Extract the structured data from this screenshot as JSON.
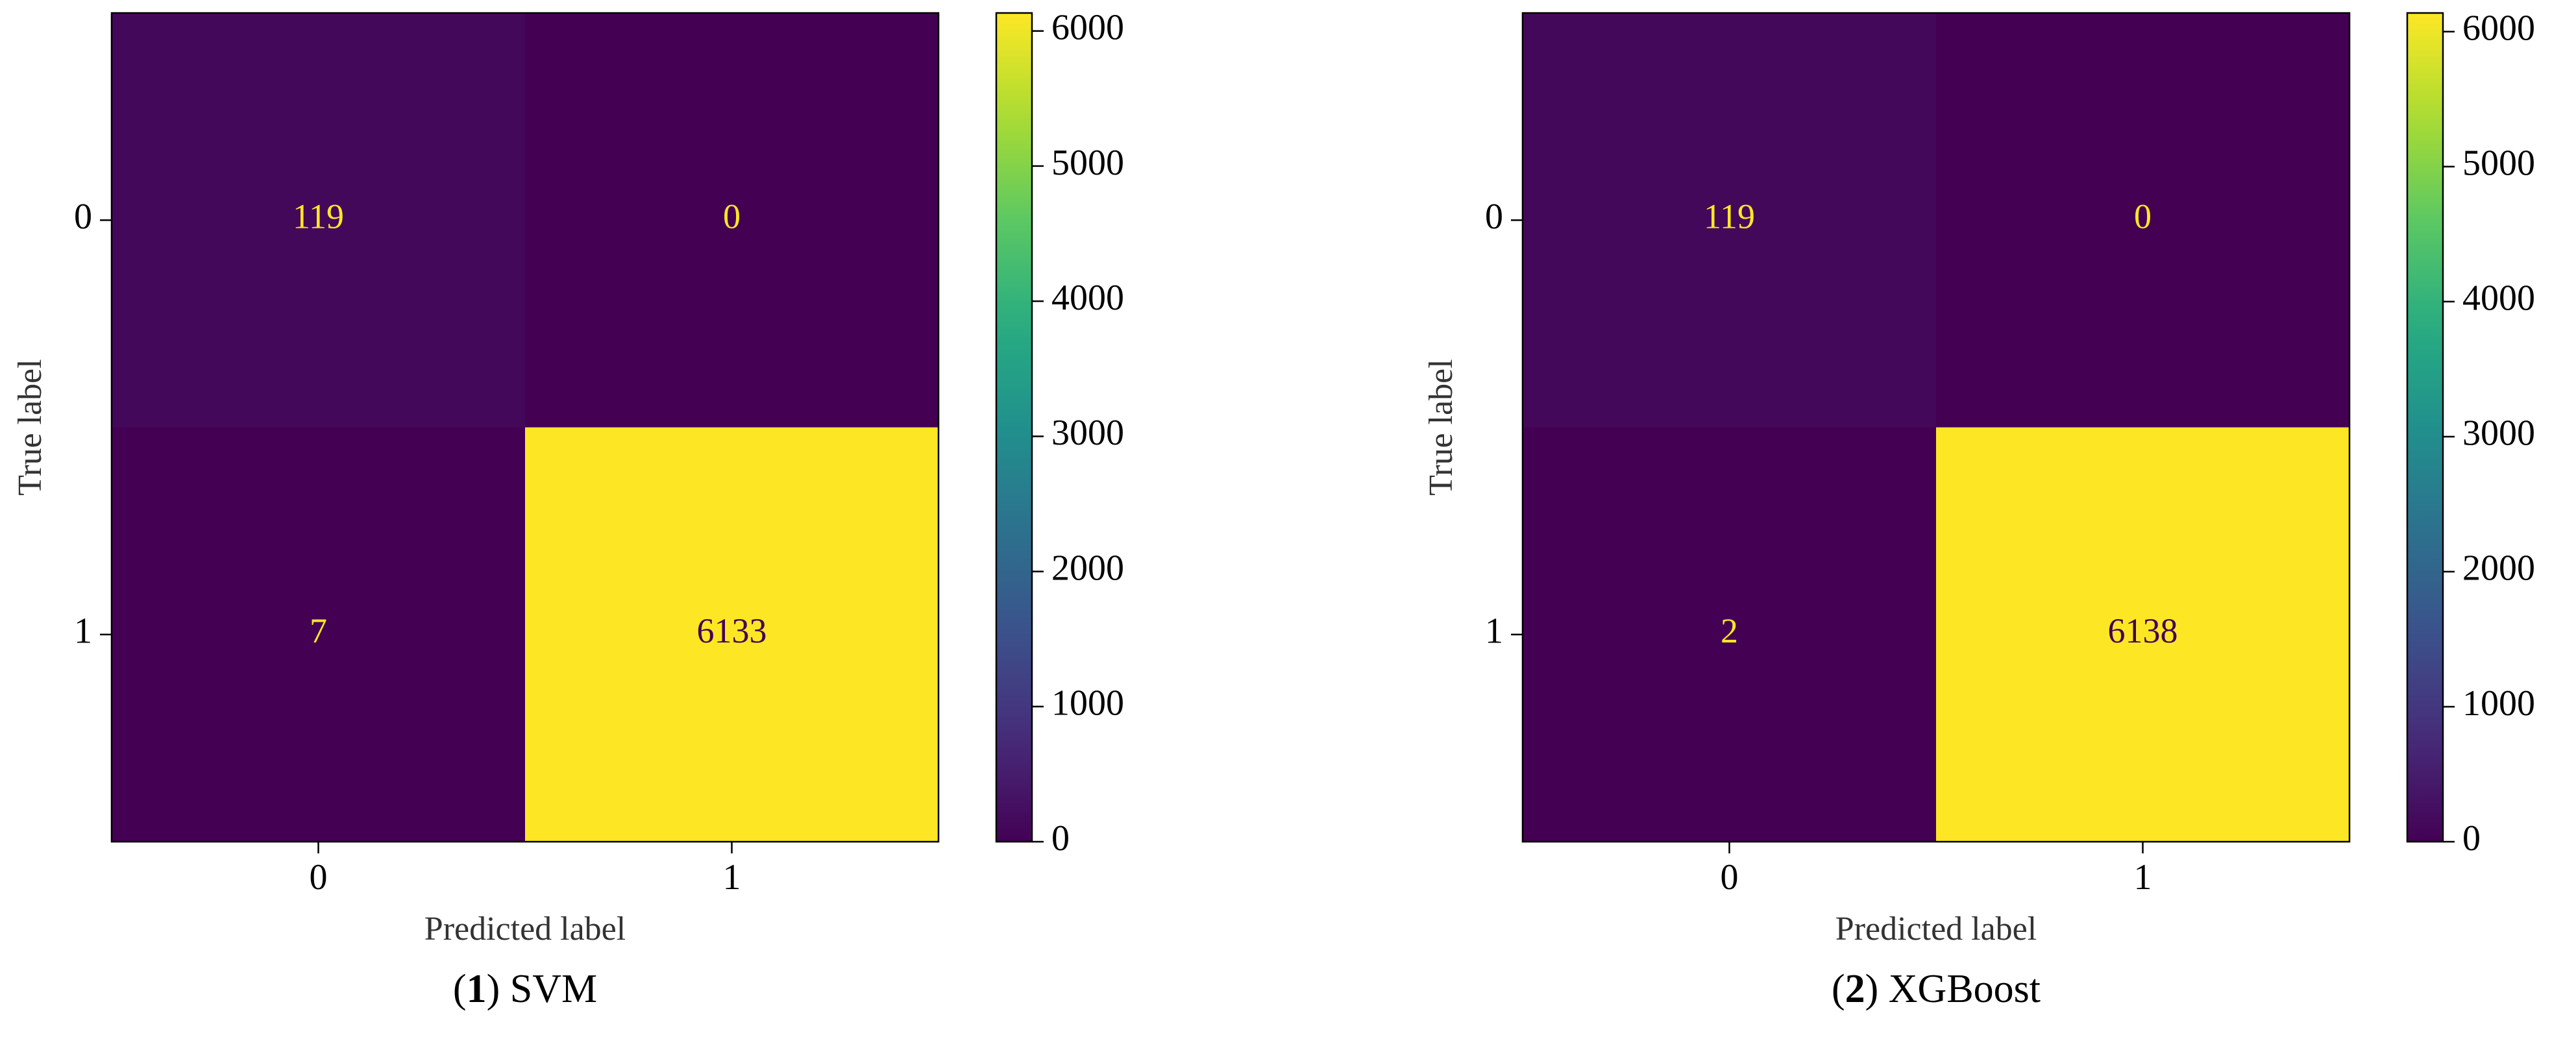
{
  "chart_data": [
    {
      "type": "heatmap",
      "x_categories": [
        "0",
        "1"
      ],
      "y_categories": [
        "0",
        "1"
      ],
      "values": [
        [
          119,
          0
        ],
        [
          7,
          6133
        ]
      ],
      "xlabel": "Predicted label",
      "ylabel": "True label",
      "colormap": "viridis",
      "clim": [
        0,
        6133
      ],
      "cbar_ticks": [
        0,
        1000,
        2000,
        3000,
        4000,
        5000,
        6000
      ],
      "caption_parts": [
        "(",
        "1",
        ") SVM"
      ]
    },
    {
      "type": "heatmap",
      "x_categories": [
        "0",
        "1"
      ],
      "y_categories": [
        "0",
        "1"
      ],
      "values": [
        [
          119,
          0
        ],
        [
          2,
          6138
        ]
      ],
      "xlabel": "Predicted label",
      "ylabel": "True label",
      "colormap": "viridis",
      "clim": [
        0,
        6138
      ],
      "cbar_ticks": [
        0,
        1000,
        2000,
        3000,
        4000,
        5000,
        6000
      ],
      "caption_parts": [
        "(",
        "2",
        ") XGBoost"
      ]
    }
  ]
}
